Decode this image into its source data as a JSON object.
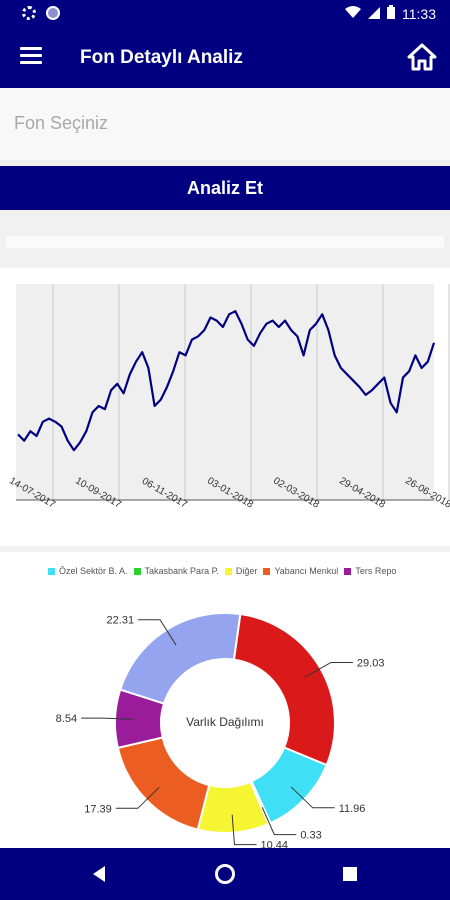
{
  "statusbar": {
    "time": "11:33"
  },
  "appbar": {
    "title": "Fon Detaylı Analiz"
  },
  "picker": {
    "placeholder": "Fon Seçiniz"
  },
  "action": {
    "analyze_label": "Analiz Et"
  },
  "colors": {
    "brand": "#000080",
    "line": "#000080"
  },
  "chart_data": [
    {
      "type": "line",
      "x_ticks": [
        "14-07-2017",
        "10-09-2017",
        "06-11-2017",
        "03-01-2018",
        "02-03-2018",
        "29-04-2018",
        "26-06-2018"
      ],
      "series": [
        {
          "values": [
            20,
            16,
            22,
            19,
            28,
            30,
            28,
            25,
            16,
            10,
            15,
            22,
            34,
            38,
            36,
            48,
            52,
            46,
            58,
            66,
            72,
            62,
            38,
            42,
            50,
            60,
            72,
            70,
            80,
            82,
            86,
            94,
            92,
            88,
            96,
            98,
            90,
            80,
            76,
            84,
            90,
            92,
            88,
            92,
            86,
            82,
            70,
            86,
            90,
            96,
            86,
            70,
            62,
            58,
            54,
            50,
            45,
            48,
            52,
            56,
            40,
            34,
            56,
            60,
            70,
            62,
            66,
            78
          ]
        }
      ],
      "grid": true
    },
    {
      "type": "pie",
      "center_label": "Varlık Dağılımı",
      "legend": [
        {
          "label": "Özel Sektör B. A.",
          "color": "#3fe0f5"
        },
        {
          "label": "Takasbank Para P.",
          "color": "#2cd22c"
        },
        {
          "label": "Diğer",
          "color": "#f5f531"
        },
        {
          "label": "Yabancı Menkul",
          "color": "#ec5d22"
        },
        {
          "label": "Ters Repo",
          "color": "#9a1c9a"
        }
      ],
      "slices": [
        {
          "value": 29.03,
          "label": "29.03",
          "color": "#da1a1a"
        },
        {
          "value": 11.96,
          "label": "11.96",
          "color": "#3fe0f5"
        },
        {
          "value": 0.33,
          "label": "0.33",
          "color": "#2cd22c"
        },
        {
          "value": 10.44,
          "label": "10.44",
          "color": "#f5f531"
        },
        {
          "value": 17.39,
          "label": "17.39",
          "color": "#ec5d22"
        },
        {
          "value": 8.54,
          "label": "8.54",
          "color": "#9a1c9a"
        },
        {
          "value": 22.31,
          "label": "22.31",
          "color": "#94a4ee"
        }
      ]
    }
  ]
}
